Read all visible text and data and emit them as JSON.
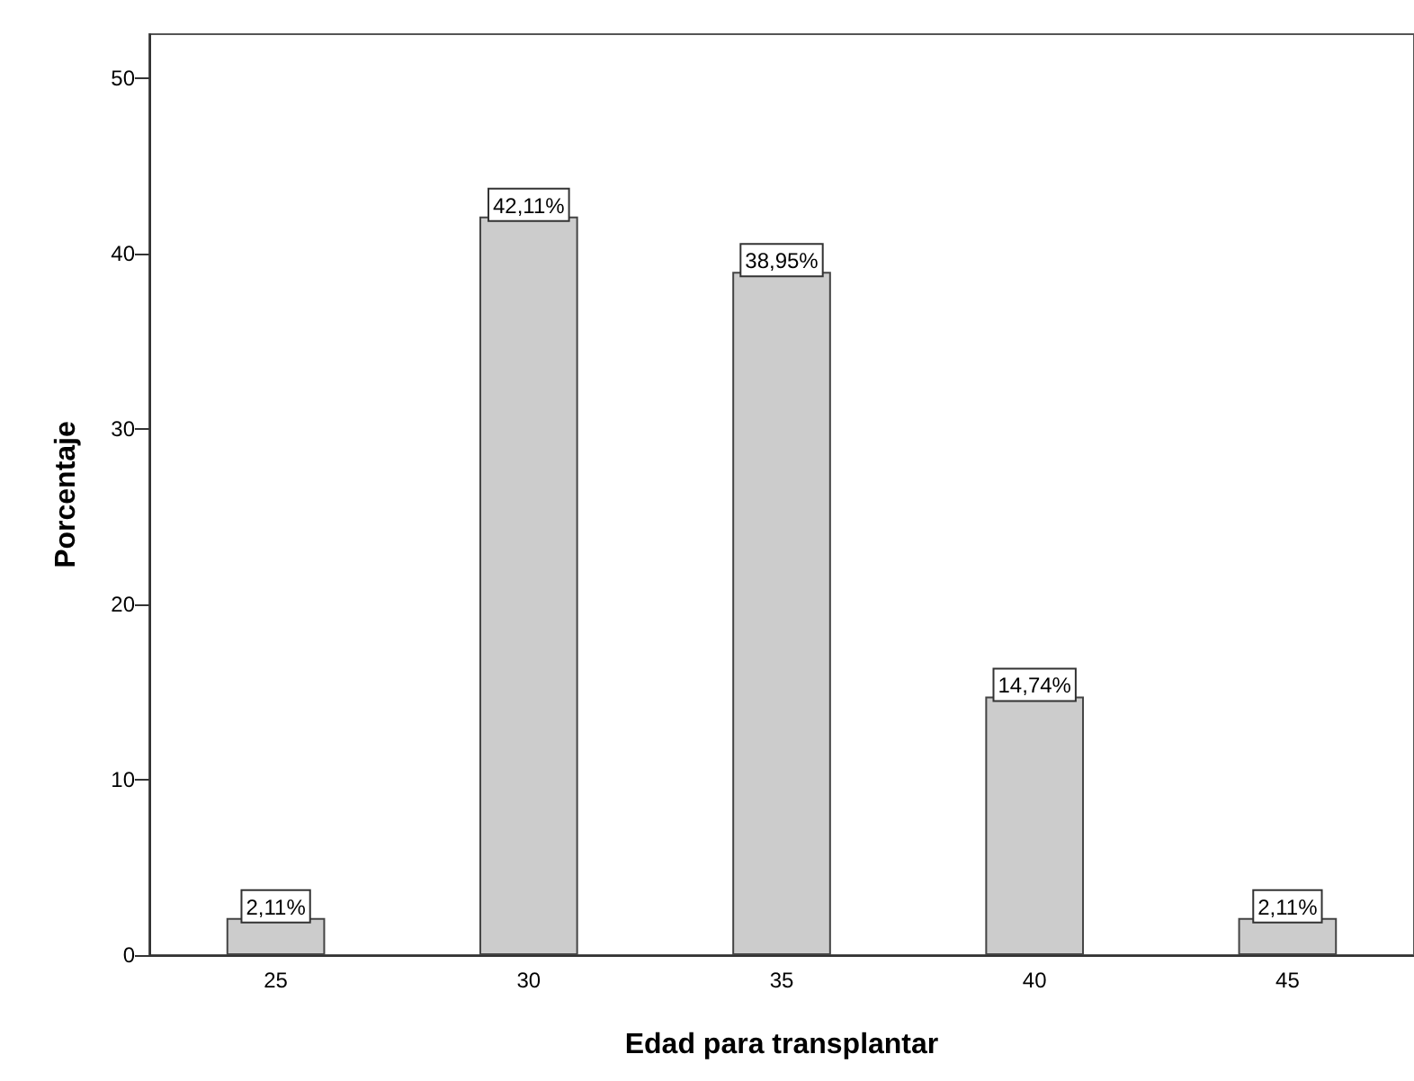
{
  "chart_data": {
    "type": "bar",
    "xlabel": "Edad para transplantar",
    "ylabel": "Porcentaje",
    "categories": [
      "25",
      "30",
      "35",
      "40",
      "45"
    ],
    "values": [
      2.11,
      42.11,
      38.95,
      14.74,
      2.11
    ],
    "value_labels": [
      "2,11%",
      "42,11%",
      "38,95%",
      "14,74%",
      "2,11%"
    ],
    "color": "#cccccc",
    "ylim": [
      0,
      52.5
    ],
    "yticks": [
      0,
      10,
      20,
      30,
      40,
      50
    ],
    "grid": false
  }
}
